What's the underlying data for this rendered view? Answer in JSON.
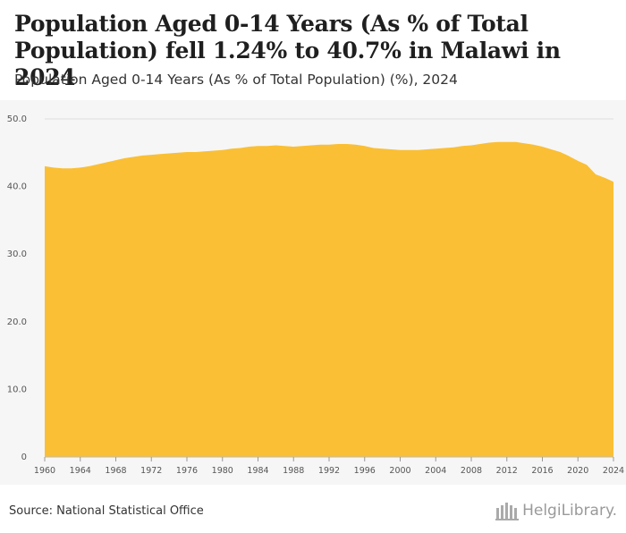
{
  "header": {
    "title": "Population Aged 0-14 Years (As % of Total Population) fell 1.24% to 40.7% in Malawi in 2024",
    "subtitle": "Population Aged 0-14 Years (As % of Total Population) (%), 2024"
  },
  "footer": {
    "source": "Source: National Statistical Office",
    "logo_text": "HelgiLibrary."
  },
  "colors": {
    "area_fill": "#fabf34",
    "grid": "#dddddd",
    "axis_text": "#555555",
    "chart_bg": "#f6f6f6"
  },
  "chart_data": {
    "type": "area",
    "title": "Population Aged 0-14 Years (As % of Total Population)",
    "xlabel": "",
    "ylabel": "%",
    "ylim": [
      0,
      50
    ],
    "xlim": [
      1960,
      2024
    ],
    "y_ticks": [
      {
        "value": 0,
        "label": "0"
      },
      {
        "value": 10,
        "label": "10.0"
      },
      {
        "value": 20,
        "label": "20.0"
      },
      {
        "value": 30,
        "label": "30.0"
      },
      {
        "value": 40,
        "label": "40.0"
      },
      {
        "value": 50,
        "label": "50.0"
      }
    ],
    "x_ticks": [
      1960,
      1964,
      1968,
      1972,
      1976,
      1980,
      1984,
      1988,
      1992,
      1996,
      2000,
      2004,
      2008,
      2012,
      2016,
      2020,
      2024
    ],
    "grid": true,
    "series": [
      {
        "name": "Population Aged 0-14 Years (As % of Total Population)",
        "x": [
          1960,
          1961,
          1962,
          1963,
          1964,
          1965,
          1966,
          1967,
          1968,
          1969,
          1970,
          1971,
          1972,
          1973,
          1974,
          1975,
          1976,
          1977,
          1978,
          1979,
          1980,
          1981,
          1982,
          1983,
          1984,
          1985,
          1986,
          1987,
          1988,
          1989,
          1990,
          1991,
          1992,
          1993,
          1994,
          1995,
          1996,
          1997,
          1998,
          1999,
          2000,
          2001,
          2002,
          2003,
          2004,
          2005,
          2006,
          2007,
          2008,
          2009,
          2010,
          2011,
          2012,
          2013,
          2014,
          2015,
          2016,
          2017,
          2018,
          2019,
          2020,
          2021,
          2022,
          2023,
          2024
        ],
        "values": [
          43.0,
          42.8,
          42.7,
          42.7,
          42.8,
          43.0,
          43.3,
          43.6,
          43.9,
          44.2,
          44.4,
          44.6,
          44.7,
          44.8,
          44.9,
          45.0,
          45.1,
          45.1,
          45.2,
          45.3,
          45.4,
          45.6,
          45.7,
          45.9,
          46.0,
          46.0,
          46.1,
          46.0,
          45.9,
          46.0,
          46.1,
          46.2,
          46.2,
          46.3,
          46.3,
          46.2,
          46.0,
          45.7,
          45.6,
          45.5,
          45.4,
          45.4,
          45.4,
          45.5,
          45.6,
          45.7,
          45.8,
          46.0,
          46.1,
          46.3,
          46.5,
          46.6,
          46.6,
          46.6,
          46.4,
          46.2,
          45.9,
          45.5,
          45.1,
          44.5,
          43.8,
          43.2,
          41.8,
          41.3,
          40.7
        ]
      }
    ]
  }
}
